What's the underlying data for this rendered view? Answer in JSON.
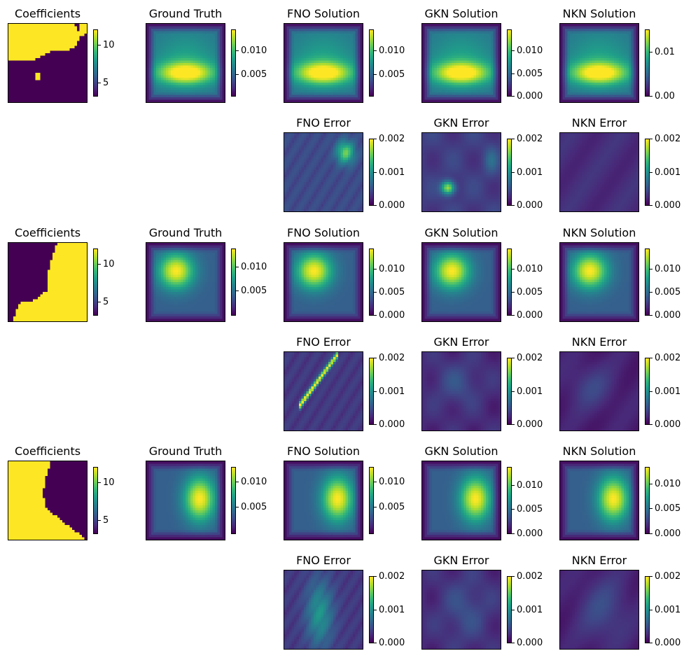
{
  "figure": {
    "colormap": [
      "#440154",
      "#482878",
      "#3e4a89",
      "#31688e",
      "#26828e",
      "#1f9e89",
      "#35b779",
      "#6ece58",
      "#b5de2b",
      "#fde725"
    ]
  },
  "chart_data": {
    "type": "heatmap",
    "columns": [
      "Coefficients",
      "Ground Truth",
      "FNO Solution",
      "GKN Solution",
      "NKN Solution"
    ],
    "error_columns": [
      "FNO Error",
      "GKN Error",
      "NKN Error"
    ],
    "samples": [
      {
        "panels": [
          {
            "id": "coef",
            "title": "Coefficients",
            "kind": "coef",
            "ticks": [
              "10",
              "5"
            ],
            "tick_pos": [
              0.23,
              0.8
            ]
          },
          {
            "id": "gt",
            "title": "Ground Truth",
            "kind": "sol",
            "ticks": [
              "0.010",
              "0.005"
            ],
            "tick_pos": [
              0.32,
              0.67
            ]
          },
          {
            "id": "fno_sol",
            "title": "FNO Solution",
            "kind": "sol",
            "ticks": [
              "0.010",
              "0.005"
            ],
            "tick_pos": [
              0.32,
              0.67
            ]
          },
          {
            "id": "gkn_sol",
            "title": "GKN Solution",
            "kind": "sol",
            "ticks": [
              "0.010",
              "0.005",
              "0.000"
            ],
            "tick_pos": [
              0.32,
              0.66,
              1.0
            ]
          },
          {
            "id": "nkn_sol",
            "title": "NKN Solution",
            "kind": "sol",
            "ticks": [
              "0.01",
              "0.00"
            ],
            "tick_pos": [
              0.34,
              1.0
            ]
          },
          {
            "id": "fno_err",
            "title": "FNO Error",
            "kind": "err",
            "ticks": [
              "0.002",
              "0.001",
              "0.000"
            ],
            "tick_pos": [
              0.0,
              0.5,
              1.0
            ]
          },
          {
            "id": "gkn_err",
            "title": "GKN Error",
            "kind": "err",
            "ticks": [
              "0.002",
              "0.001",
              "0.000"
            ],
            "tick_pos": [
              0.0,
              0.5,
              1.0
            ]
          },
          {
            "id": "nkn_err",
            "title": "NKN Error",
            "kind": "err",
            "ticks": [
              "0.002",
              "0.001",
              "0.000"
            ],
            "tick_pos": [
              0.0,
              0.5,
              1.0
            ]
          }
        ]
      },
      {
        "panels": [
          {
            "id": "coef",
            "title": "Coefficients",
            "kind": "coef",
            "ticks": [
              "10",
              "5"
            ],
            "tick_pos": [
              0.23,
              0.8
            ]
          },
          {
            "id": "gt",
            "title": "Ground Truth",
            "kind": "sol",
            "ticks": [
              "0.010",
              "0.005"
            ],
            "tick_pos": [
              0.27,
              0.63
            ]
          },
          {
            "id": "fno_sol",
            "title": "FNO Solution",
            "kind": "sol",
            "ticks": [
              "0.010",
              "0.005",
              "0.000"
            ],
            "tick_pos": [
              0.3,
              0.65,
              1.0
            ]
          },
          {
            "id": "gkn_sol",
            "title": "GKN Solution",
            "kind": "sol",
            "ticks": [
              "0.010",
              "0.005",
              "0.000"
            ],
            "tick_pos": [
              0.3,
              0.65,
              1.0
            ]
          },
          {
            "id": "nkn_sol",
            "title": "NKN Solution",
            "kind": "sol",
            "ticks": [
              "0.010",
              "0.005",
              "0.000"
            ],
            "tick_pos": [
              0.3,
              0.65,
              1.0
            ]
          },
          {
            "id": "fno_err",
            "title": "FNO Error",
            "kind": "err",
            "ticks": [
              "0.002",
              "0.001",
              "0.000"
            ],
            "tick_pos": [
              0.0,
              0.5,
              1.0
            ]
          },
          {
            "id": "gkn_err",
            "title": "GKN Error",
            "kind": "err",
            "ticks": [
              "0.002",
              "0.001",
              "0.000"
            ],
            "tick_pos": [
              0.0,
              0.5,
              1.0
            ]
          },
          {
            "id": "nkn_err",
            "title": "NKN Error",
            "kind": "err",
            "ticks": [
              "0.002",
              "0.001",
              "0.000"
            ],
            "tick_pos": [
              0.0,
              0.5,
              1.0
            ]
          }
        ]
      },
      {
        "panels": [
          {
            "id": "coef",
            "title": "Coefficients",
            "kind": "coef",
            "ticks": [
              "10",
              "5"
            ],
            "tick_pos": [
              0.23,
              0.8
            ]
          },
          {
            "id": "gt",
            "title": "Ground Truth",
            "kind": "sol",
            "ticks": [
              "0.010",
              "0.005"
            ],
            "tick_pos": [
              0.22,
              0.6
            ]
          },
          {
            "id": "fno_sol",
            "title": "FNO Solution",
            "kind": "sol",
            "ticks": [
              "0.010",
              "0.005"
            ],
            "tick_pos": [
              0.22,
              0.6
            ]
          },
          {
            "id": "gkn_sol",
            "title": "GKN Solution",
            "kind": "sol",
            "ticks": [
              "0.010",
              "0.005",
              "0.000"
            ],
            "tick_pos": [
              0.27,
              0.63,
              1.0
            ]
          },
          {
            "id": "nkn_sol",
            "title": "NKN Solution",
            "kind": "sol",
            "ticks": [
              "0.010",
              "0.005",
              "0.000"
            ],
            "tick_pos": [
              0.25,
              0.62,
              1.0
            ]
          },
          {
            "id": "fno_err",
            "title": "FNO Error",
            "kind": "err",
            "ticks": [
              "0.002",
              "0.001",
              "0.000"
            ],
            "tick_pos": [
              0.0,
              0.5,
              1.0
            ]
          },
          {
            "id": "gkn_err",
            "title": "GKN Error",
            "kind": "err",
            "ticks": [
              "0.002",
              "0.001",
              "0.000"
            ],
            "tick_pos": [
              0.0,
              0.5,
              1.0
            ]
          },
          {
            "id": "nkn_err",
            "title": "NKN Error",
            "kind": "err",
            "ticks": [
              "0.002",
              "0.001",
              "0.000"
            ],
            "tick_pos": [
              0.0,
              0.5,
              1.0
            ]
          }
        ]
      }
    ]
  }
}
